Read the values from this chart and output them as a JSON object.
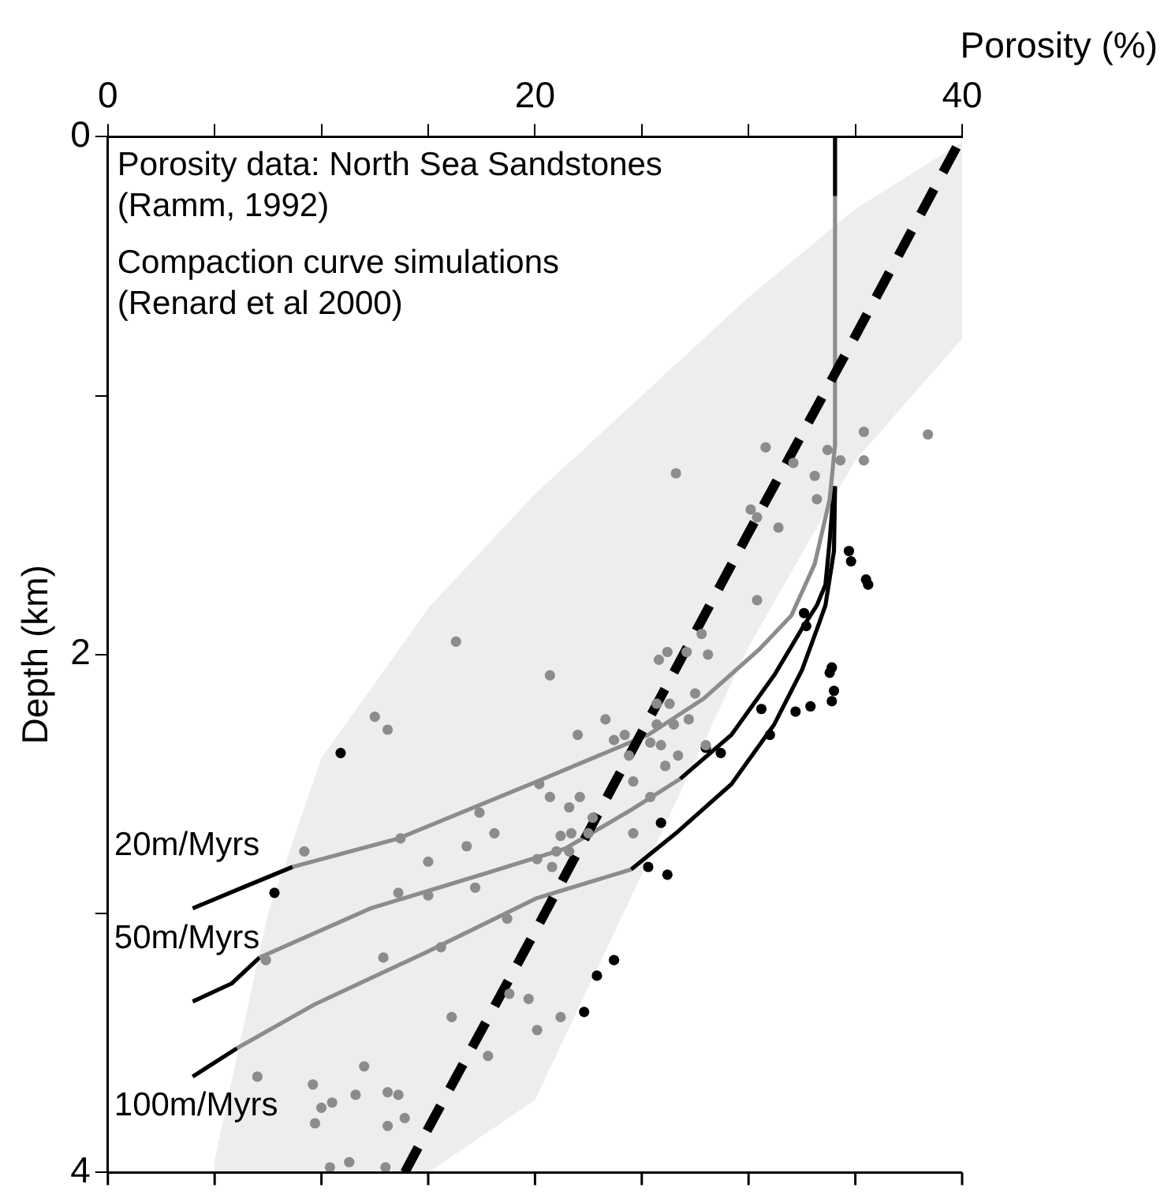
{
  "chart_data": {
    "type": "line",
    "xlabel": "Porosity (%)",
    "ylabel": "Depth (km)",
    "xlim": [
      0,
      40
    ],
    "ylim": [
      4,
      0
    ],
    "xticks": [
      0,
      {
        "value": 5,
        "label": null
      },
      {
        "value": 10,
        "label": null
      },
      {
        "value": 15,
        "label": null
      },
      20,
      {
        "value": 25,
        "label": null
      },
      {
        "value": 30,
        "label": null
      },
      {
        "value": 35,
        "label": null
      },
      40
    ],
    "yticks": [
      0,
      {
        "value": 1,
        "label": null
      },
      2,
      {
        "value": 3,
        "label": null
      },
      4
    ],
    "grid": false,
    "legend": false,
    "annotations": [
      "Porosity data: North Sea Sandstones",
      "(Ramm, 1992)",
      "Compaction curve simulations",
      "(Renard et al 2000)"
    ],
    "series": [
      {
        "color": "#000000",
        "line_style": "dashed",
        "x": [
          5,
          7.5,
          10,
          13.9,
          15,
          20,
          25,
          30,
          35,
          40
        ],
        "values": [
          null,
          null,
          null,
          4,
          3.83,
          3.07,
          2.3,
          1.53,
          0.77,
          0
        ],
        "lower": [
          3.95,
          3.0,
          2.4,
          1.95,
          1.82,
          1.38,
          1.0,
          0.62,
          0.28,
          0.02
        ],
        "upper": [
          4,
          4,
          4,
          4,
          4,
          3.72,
          2.85,
          1.97,
          1.25,
          0.78
        ]
      },
      {
        "type": "scatter",
        "marker": "circle",
        "color": "#8c8c8c",
        "x": [
          38.4,
          35.4,
          30.8,
          33.7,
          34.3,
          35.4,
          32.1,
          33.1,
          26.6,
          33.2,
          30.1,
          30.4,
          31.4,
          30.4,
          16.3,
          27.8,
          26.2,
          27.1,
          28.1,
          25.8,
          20.7,
          27.5,
          25.7,
          26.3,
          12.5,
          13.1,
          23.3,
          27.2,
          25.7,
          26.5,
          23.7,
          24.2,
          22.0,
          25.4,
          25.9,
          24.4,
          26.7,
          26.1,
          28.0,
          24.6,
          20.2,
          25.4,
          20.7,
          22.1,
          21.6,
          22.7,
          17.4,
          18.1,
          21.2,
          21.7,
          22.5,
          13.7,
          24.6,
          16.8,
          21.0,
          21.6,
          20.1,
          15.0,
          9.2,
          20.8,
          13.6,
          15.0,
          17.2,
          18.7,
          12.9,
          15.6,
          7.4,
          18.8,
          19.7,
          21.2,
          20.1,
          16.1,
          17.8,
          7.0,
          9.6,
          12.0,
          10.5,
          11.6,
          13.1,
          13.6,
          13.9,
          13.1,
          10.0,
          9.7,
          11.3,
          10.4,
          13.0
        ],
        "values": [
          1.15,
          1.14,
          1.2,
          1.21,
          1.25,
          1.25,
          1.26,
          1.31,
          1.3,
          1.4,
          1.44,
          1.47,
          1.51,
          1.79,
          1.95,
          1.92,
          1.99,
          1.99,
          2.0,
          2.02,
          2.08,
          2.15,
          2.19,
          2.19,
          2.24,
          2.29,
          2.25,
          2.25,
          2.27,
          2.27,
          2.33,
          2.31,
          2.31,
          2.34,
          2.35,
          2.39,
          2.39,
          2.43,
          2.35,
          2.49,
          2.5,
          2.55,
          2.55,
          2.55,
          2.59,
          2.63,
          2.61,
          2.69,
          2.7,
          2.69,
          2.69,
          2.71,
          2.69,
          2.74,
          2.76,
          2.76,
          2.79,
          2.8,
          2.76,
          2.82,
          2.92,
          2.93,
          2.9,
          3.02,
          3.17,
          3.13,
          3.18,
          3.31,
          3.33,
          3.4,
          3.45,
          3.4,
          3.55,
          3.63,
          3.66,
          3.59,
          3.73,
          3.7,
          3.69,
          3.7,
          3.79,
          3.82,
          3.75,
          3.81,
          3.96,
          3.98,
          3.98
        ]
      },
      {
        "type": "scatter",
        "marker": "circle",
        "color": "#000000",
        "x": [
          10.9,
          7.8,
          33.9,
          33.8,
          34.0,
          33.9,
          32.9,
          32.2,
          30.6,
          31.0,
          28.7,
          28.0,
          25.9,
          25.3,
          26.2,
          23.7,
          22.9,
          22.3,
          32.6,
          32.7,
          34.7,
          34.8,
          35.5,
          35.6
        ],
        "values": [
          2.38,
          2.92,
          2.05,
          2.07,
          2.14,
          2.18,
          2.2,
          2.22,
          2.21,
          2.31,
          2.38,
          2.36,
          2.65,
          2.82,
          2.85,
          3.18,
          3.24,
          3.38,
          1.84,
          1.89,
          1.6,
          1.64,
          1.71,
          1.73
        ]
      },
      {
        "color": "#8c8c8c",
        "x": [
          8.65,
          13.6,
          20.1,
          25.3,
          27.9,
          30.5,
          32.0,
          33.1,
          33.8,
          34.05,
          34.05
        ],
        "values": [
          2.82,
          2.71,
          2.49,
          2.31,
          2.17,
          1.98,
          1.85,
          1.65,
          1.4,
          1.19,
          0.23
        ]
      },
      {
        "color": "#8c8c8c",
        "x": [
          7.1,
          12.3,
          17.5,
          21.4,
          24.5,
          26.8
        ],
        "values": [
          3.17,
          2.98,
          2.85,
          2.75,
          2.6,
          2.48
        ]
      },
      {
        "color": "#8c8c8c",
        "x": [
          6.05,
          9.7,
          14.9,
          20.1,
          24.5
        ],
        "values": [
          3.52,
          3.35,
          3.15,
          2.94,
          2.83
        ]
      },
      {
        "name": "20m/Myrs",
        "color": "#000000",
        "x": [
          3.97,
          6.3,
          8.65,
          null,
          34.05,
          34.05
        ],
        "values": [
          2.98,
          2.9,
          2.82,
          null,
          0.23,
          0
        ]
      },
      {
        "name": "50m/Myrs",
        "color": "#000000",
        "x": [
          3.97,
          5.8,
          7.1,
          null,
          26.8,
          29.2,
          31.2,
          32.5,
          33.2,
          33.6,
          33.8,
          34.0
        ],
        "values": [
          3.34,
          3.27,
          3.17,
          null,
          2.48,
          2.31,
          2.08,
          1.9,
          1.81,
          1.73,
          1.56,
          1.35
        ]
      },
      {
        "name": "100m/Myrs",
        "color": "#000000",
        "x": [
          3.97,
          6.05,
          null,
          24.5,
          26.6,
          29.2,
          31.2,
          32.5,
          33.3,
          33.6,
          34.0,
          34.05
        ],
        "values": [
          3.63,
          3.52,
          null,
          2.83,
          2.69,
          2.5,
          2.27,
          2.06,
          1.88,
          1.81,
          1.6,
          1.35
        ]
      }
    ]
  }
}
